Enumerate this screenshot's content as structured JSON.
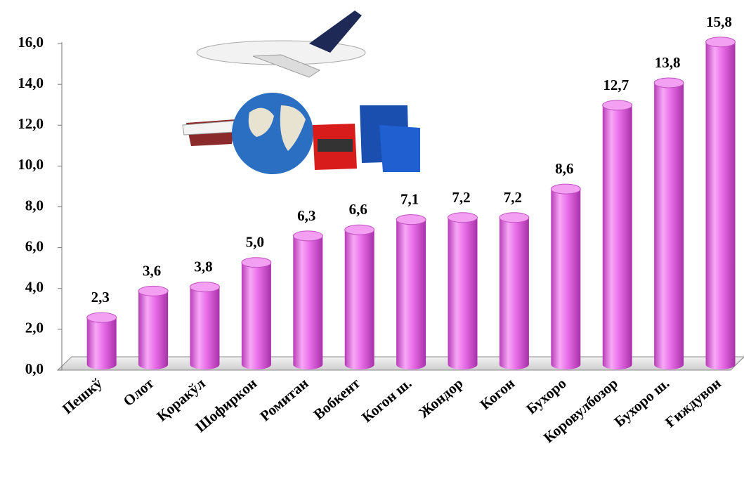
{
  "chart_data": {
    "type": "bar",
    "categories": [
      "Пешкў",
      "Олот",
      "Қоракўл",
      "Шофиркон",
      "Ромитан",
      "Вобкент",
      "Когон ш.",
      "Жондор",
      "Когон",
      "Бухоро",
      "Коровулбозор",
      "Бухоро ш.",
      "Ғиждувон"
    ],
    "values": [
      2.3,
      3.6,
      3.8,
      5.0,
      6.3,
      6.6,
      7.1,
      7.2,
      7.2,
      8.6,
      12.7,
      13.8,
      15.8
    ],
    "value_labels": [
      "2,3",
      "3,6",
      "3,8",
      "5,0",
      "6,3",
      "6,6",
      "7,1",
      "7,2",
      "7,2",
      "8,6",
      "12,7",
      "13,8",
      "15,8"
    ],
    "color": "#e66ee6",
    "ylim": [
      0,
      16
    ],
    "yticks": [
      {
        "value": 0,
        "label": "0,0"
      },
      {
        "value": 2,
        "label": "2,0"
      },
      {
        "value": 4,
        "label": "4,0"
      },
      {
        "value": 6,
        "label": "6,0"
      },
      {
        "value": 8,
        "label": "8,0"
      },
      {
        "value": 10,
        "label": "10,0"
      },
      {
        "value": 12,
        "label": "12,0"
      },
      {
        "value": 14,
        "label": "14,0"
      },
      {
        "value": 16,
        "label": "16,0"
      }
    ]
  }
}
